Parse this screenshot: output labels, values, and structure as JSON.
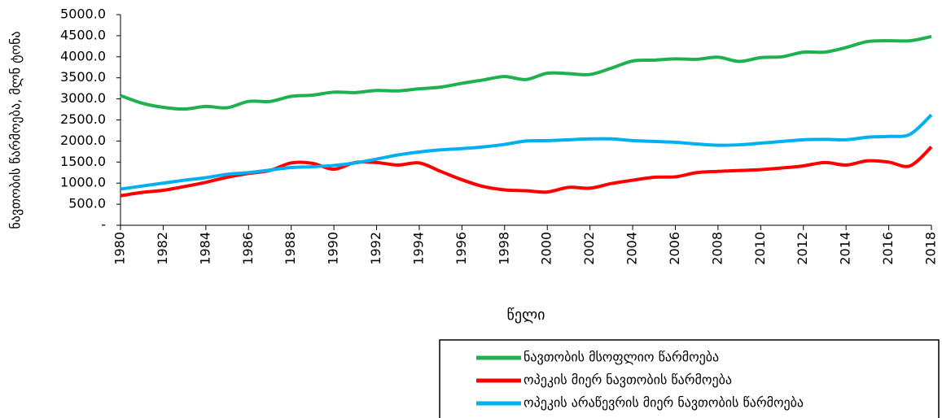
{
  "chart_data": {
    "type": "line",
    "ylabel": "ნავთობის წარმოება, მლნ ტონა",
    "xlabel": "წელი",
    "x": [
      1980,
      1981,
      1982,
      1983,
      1984,
      1985,
      1986,
      1987,
      1988,
      1989,
      1990,
      1991,
      1992,
      1993,
      1994,
      1995,
      1996,
      1997,
      1998,
      1999,
      2000,
      2001,
      2002,
      2003,
      2004,
      2005,
      2006,
      2007,
      2008,
      2009,
      2010,
      2011,
      2012,
      2013,
      2014,
      2015,
      2016,
      2017,
      2018
    ],
    "xlim": [
      1980,
      2018
    ],
    "xticks": [
      1980,
      1982,
      1984,
      1986,
      1988,
      1990,
      1992,
      1994,
      1996,
      1998,
      2000,
      2002,
      2004,
      2006,
      2008,
      2010,
      2012,
      2014,
      2016,
      2018
    ],
    "ylim": [
      0,
      5000
    ],
    "yticks": [
      {
        "value": 0,
        "label": "-"
      },
      {
        "value": 500,
        "label": "500.0"
      },
      {
        "value": 1000,
        "label": "1000.0"
      },
      {
        "value": 1500,
        "label": "1500.0"
      },
      {
        "value": 2000,
        "label": "2000.0"
      },
      {
        "value": 2500,
        "label": "2500.0"
      },
      {
        "value": 3000,
        "label": "3000.0"
      },
      {
        "value": 3500,
        "label": "3500.0"
      },
      {
        "value": 4000,
        "label": "4000.0"
      },
      {
        "value": 4500,
        "label": "4500.0"
      },
      {
        "value": 5000,
        "label": "5000.0"
      }
    ],
    "series": [
      {
        "name": "ნავთობის მსოფლიო წარმოება",
        "color": "#1fb04f",
        "values": [
          3080,
          2900,
          2800,
          2760,
          2820,
          2790,
          2940,
          2940,
          3060,
          3090,
          3160,
          3150,
          3200,
          3190,
          3240,
          3280,
          3370,
          3450,
          3530,
          3460,
          3610,
          3600,
          3580,
          3730,
          3900,
          3920,
          3950,
          3940,
          3990,
          3890,
          3980,
          4000,
          4110,
          4110,
          4220,
          4360,
          4380,
          4380,
          4480
        ]
      },
      {
        "name": "ოპეკის მიერ ნავთობის წარმოება",
        "color": "#ff0000",
        "values": [
          700,
          780,
          830,
          920,
          1020,
          1140,
          1230,
          1300,
          1480,
          1470,
          1330,
          1490,
          1490,
          1430,
          1480,
          1280,
          1080,
          920,
          840,
          820,
          790,
          900,
          880,
          990,
          1070,
          1140,
          1150,
          1250,
          1280,
          1300,
          1320,
          1360,
          1410,
          1490,
          1430,
          1530,
          1500,
          1410,
          1860
        ]
      },
      {
        "name": "ოპეკის არაწევრის მიერ ნავთობის წარმოება",
        "color": "#00b0f0",
        "values": [
          860,
          930,
          1000,
          1070,
          1130,
          1210,
          1250,
          1310,
          1370,
          1390,
          1420,
          1480,
          1570,
          1670,
          1740,
          1790,
          1820,
          1860,
          1920,
          2000,
          2010,
          2030,
          2050,
          2050,
          2010,
          1990,
          1970,
          1930,
          1900,
          1910,
          1950,
          1990,
          2030,
          2040,
          2030,
          2090,
          2110,
          2160,
          2620
        ]
      }
    ],
    "legend": "bottom-right"
  }
}
